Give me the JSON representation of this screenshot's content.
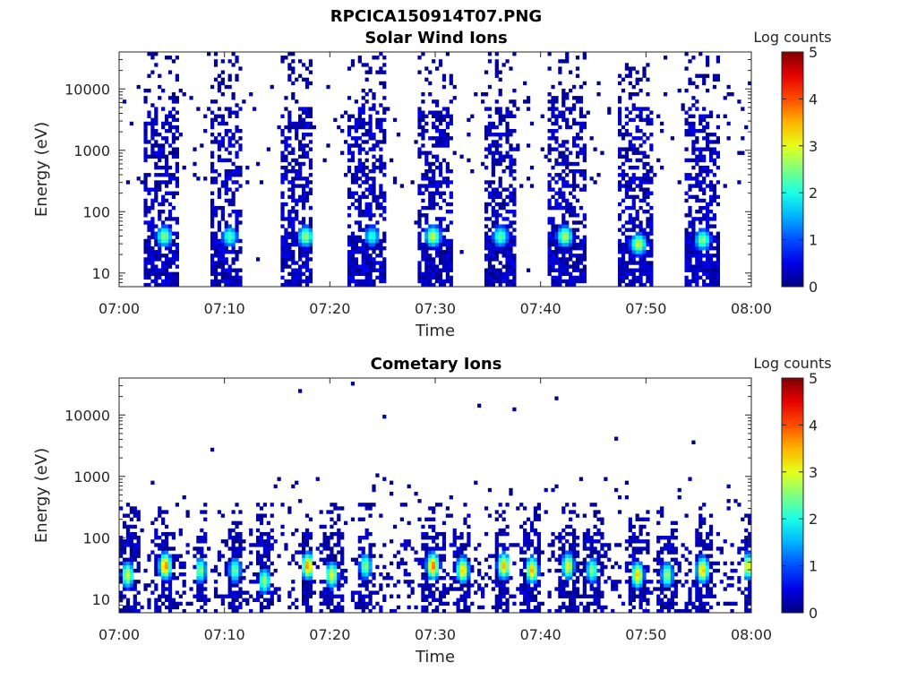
{
  "figure_title": "RPCICA150914T07.PNG",
  "chart_data": [
    {
      "type": "heatmap",
      "title": "Solar Wind Ions",
      "xlabel": "Time",
      "ylabel": "Energy (eV)",
      "x_ticks": [
        "07:00",
        "07:10",
        "07:20",
        "07:30",
        "07:40",
        "07:50",
        "08:00"
      ],
      "x_range": [
        "07:00",
        "08:00"
      ],
      "y_scale": "log",
      "y_ticks": [
        "10",
        "100",
        "1000",
        "10000"
      ],
      "y_range": [
        6,
        40000
      ],
      "colorbar": {
        "label": "Log counts",
        "range": [
          0,
          5
        ],
        "ticks": [
          "0",
          "1",
          "2",
          "3",
          "4",
          "5"
        ],
        "colormap": "jet"
      },
      "bursts": [
        {
          "start": "07:02.4",
          "end": "07:05.6",
          "peak_time": "07:04.3",
          "peak_energy": 40,
          "peak_log_counts": 2.6
        },
        {
          "start": "07:08.6",
          "end": "07:11.6",
          "peak_time": "07:10.5",
          "peak_energy": 40,
          "peak_log_counts": 2.3
        },
        {
          "start": "07:15.2",
          "end": "07:18.3",
          "peak_time": "07:17.7",
          "peak_energy": 40,
          "peak_log_counts": 2.7
        },
        {
          "start": "07:21.8",
          "end": "07:25.2",
          "peak_time": "07:24.0",
          "peak_energy": 40,
          "peak_log_counts": 2.1
        },
        {
          "start": "07:28.3",
          "end": "07:31.6",
          "peak_time": "07:29.8",
          "peak_energy": 40,
          "peak_log_counts": 2.9
        },
        {
          "start": "07:34.6",
          "end": "07:37.6",
          "peak_time": "07:36.2",
          "peak_energy": 40,
          "peak_log_counts": 2.4
        },
        {
          "start": "07:40.7",
          "end": "07:44.2",
          "peak_time": "07:42.3",
          "peak_energy": 40,
          "peak_log_counts": 2.8
        },
        {
          "start": "07:47.3",
          "end": "07:50.6",
          "peak_time": "07:49.3",
          "peak_energy": 30,
          "peak_log_counts": 2.9
        },
        {
          "start": "07:53.8",
          "end": "07:57.0",
          "peak_time": "07:55.4",
          "peak_energy": 35,
          "peak_log_counts": 2.6
        }
      ]
    },
    {
      "type": "heatmap",
      "title": "Cometary Ions",
      "xlabel": "Time",
      "ylabel": "Energy (eV)",
      "x_ticks": [
        "07:00",
        "07:10",
        "07:20",
        "07:30",
        "07:40",
        "07:50",
        "08:00"
      ],
      "x_range": [
        "07:00",
        "08:00"
      ],
      "y_scale": "log",
      "y_ticks": [
        "10",
        "100",
        "1000",
        "10000"
      ],
      "y_range": [
        6,
        40000
      ],
      "colorbar": {
        "label": "Log counts",
        "range": [
          0,
          5
        ],
        "ticks": [
          "0",
          "1",
          "2",
          "3",
          "4",
          "5"
        ],
        "colormap": "jet"
      },
      "bursts": [
        {
          "start": "07:00.0",
          "end": "07:02.0",
          "peak_time": "07:00.8",
          "peak_energy": 25,
          "peak_log_counts": 3.0
        },
        {
          "start": "07:03.4",
          "end": "07:05.4",
          "peak_time": "07:04.4",
          "peak_energy": 35,
          "peak_log_counts": 3.8
        },
        {
          "start": "07:07.2",
          "end": "07:08.4",
          "peak_time": "07:07.7",
          "peak_energy": 30,
          "peak_log_counts": 2.6
        },
        {
          "start": "07:10.4",
          "end": "07:11.6",
          "peak_time": "07:11.0",
          "peak_energy": 30,
          "peak_log_counts": 2.5
        },
        {
          "start": "07:13.0",
          "end": "07:14.6",
          "peak_time": "07:13.8",
          "peak_energy": 20,
          "peak_log_counts": 2.7
        },
        {
          "start": "07:17.2",
          "end": "07:18.4",
          "peak_time": "07:17.9",
          "peak_energy": 35,
          "peak_log_counts": 3.7
        },
        {
          "start": "07:19.4",
          "end": "07:21.2",
          "peak_time": "07:20.2",
          "peak_energy": 25,
          "peak_log_counts": 3.1
        },
        {
          "start": "07:22.8",
          "end": "07:24.0",
          "peak_time": "07:23.4",
          "peak_energy": 35,
          "peak_log_counts": 2.6
        },
        {
          "start": "07:28.6",
          "end": "07:31.0",
          "peak_time": "07:29.8",
          "peak_energy": 35,
          "peak_log_counts": 3.8
        },
        {
          "start": "07:31.6",
          "end": "07:33.4",
          "peak_time": "07:32.6",
          "peak_energy": 30,
          "peak_log_counts": 3.4
        },
        {
          "start": "07:35.8",
          "end": "07:37.0",
          "peak_time": "07:36.5",
          "peak_energy": 35,
          "peak_log_counts": 3.5
        },
        {
          "start": "07:38.0",
          "end": "07:40.0",
          "peak_time": "07:39.2",
          "peak_energy": 30,
          "peak_log_counts": 3.5
        },
        {
          "start": "07:41.8",
          "end": "07:43.6",
          "peak_time": "07:42.6",
          "peak_energy": 35,
          "peak_log_counts": 3.1
        },
        {
          "start": "07:44.0",
          "end": "07:46.0",
          "peak_time": "07:44.9",
          "peak_energy": 30,
          "peak_log_counts": 2.6
        },
        {
          "start": "07:48.2",
          "end": "07:50.2",
          "peak_time": "07:49.2",
          "peak_energy": 25,
          "peak_log_counts": 3.4
        },
        {
          "start": "07:51.0",
          "end": "07:53.0",
          "peak_time": "07:52.0",
          "peak_energy": 25,
          "peak_log_counts": 2.7
        },
        {
          "start": "07:54.6",
          "end": "07:56.2",
          "peak_time": "07:55.4",
          "peak_energy": 30,
          "peak_log_counts": 3.5
        },
        {
          "start": "07:59.2",
          "end": "08:00.0",
          "peak_time": "07:59.7",
          "peak_energy": 35,
          "peak_log_counts": 3.2
        }
      ]
    }
  ]
}
